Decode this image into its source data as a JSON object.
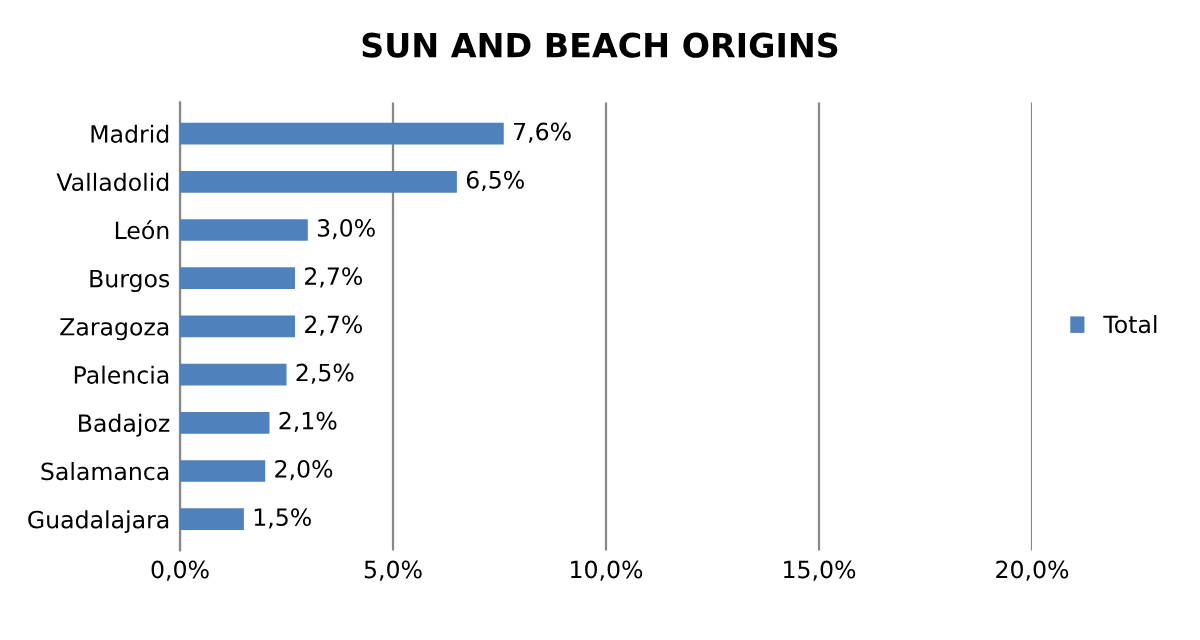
{
  "chart_data": {
    "type": "bar",
    "orientation": "horizontal",
    "title": "SUN AND BEACH ORIGINS",
    "categories": [
      "Madrid",
      "Valladolid",
      "León",
      "Burgos",
      "Zaragoza",
      "Palencia",
      "Badajoz",
      "Salamanca",
      "Guadalajara"
    ],
    "series": [
      {
        "name": "Total",
        "color": "#4f81bd",
        "values": [
          7.6,
          6.5,
          3.0,
          2.7,
          2.7,
          2.5,
          2.1,
          2.0,
          1.5
        ],
        "value_labels": [
          "7,6%",
          "6,5%",
          "3,0%",
          "2,7%",
          "2,7%",
          "2,5%",
          "2,1%",
          "2,0%",
          "1,5%"
        ]
      }
    ],
    "xlim": [
      0,
      20
    ],
    "xticks": [
      {
        "value": 0,
        "label": "0,0%"
      },
      {
        "value": 5,
        "label": "5,0%"
      },
      {
        "value": 10,
        "label": "10,0%"
      },
      {
        "value": 15,
        "label": "15,0%"
      },
      {
        "value": 20,
        "label": "20,0%"
      }
    ],
    "grid": "x",
    "legend": "right"
  }
}
